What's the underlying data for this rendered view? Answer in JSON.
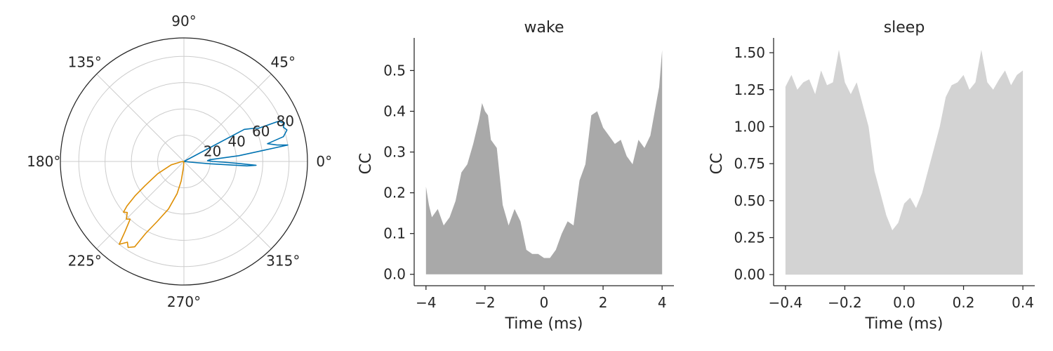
{
  "chart_data": [
    {
      "type": "polar-line",
      "angle_tick_labels": [
        "0°",
        "45°",
        "90°",
        "135°",
        "180°",
        "225°",
        "270°",
        "315°"
      ],
      "radial_tick_values": [
        20,
        40,
        60,
        80
      ],
      "radial_tick_labels": [
        "20",
        "40",
        "60",
        "80"
      ],
      "r_max": 94,
      "grid": true,
      "series": [
        {
          "color": "#0173b2",
          "points": [
            [
              0,
              0
            ],
            [
              -6,
              5
            ],
            [
              -5,
              20
            ],
            [
              -4,
              48
            ],
            [
              -3,
              55
            ],
            [
              -2,
              40
            ],
            [
              -1,
              30
            ],
            [
              0,
              22
            ],
            [
              2,
              18
            ],
            [
              4,
              20
            ],
            [
              6,
              42
            ],
            [
              8,
              62
            ],
            [
              9,
              80
            ],
            [
              10,
              72
            ],
            [
              12,
              65
            ],
            [
              14,
              78
            ],
            [
              17,
              82
            ],
            [
              19,
              80
            ],
            [
              21,
              82
            ],
            [
              23,
              78
            ],
            [
              24,
              62
            ],
            [
              25,
              60
            ],
            [
              28,
              52
            ],
            [
              0,
              0
            ]
          ]
        },
        {
          "color": "#de8f05",
          "points": [
            [
              0,
              0
            ],
            [
              186,
              2
            ],
            [
              195,
              10
            ],
            [
              205,
              22
            ],
            [
              212,
              35
            ],
            [
              215,
              45
            ],
            [
              218,
              55
            ],
            [
              220,
              60
            ],
            [
              222,
              58
            ],
            [
              225,
              62
            ],
            [
              227,
              60
            ],
            [
              230,
              70
            ],
            [
              232,
              80
            ],
            [
              235,
              75
            ],
            [
              237,
              78
            ],
            [
              240,
              75
            ],
            [
              242,
              62
            ],
            [
              246,
              50
            ],
            [
              252,
              38
            ],
            [
              258,
              25
            ],
            [
              262,
              15
            ],
            [
              265,
              5
            ],
            [
              0,
              0
            ]
          ]
        }
      ]
    },
    {
      "type": "area",
      "title": "wake",
      "xlabel": "Time (ms)",
      "ylabel": "CC",
      "xlim": [
        -4.4,
        4.4
      ],
      "ylim": [
        -0.028,
        0.58
      ],
      "xticks": [
        -4,
        -2,
        0,
        2,
        4
      ],
      "xtick_labels": [
        "−4",
        "−2",
        "0",
        "2",
        "4"
      ],
      "yticks": [
        0,
        0.1,
        0.2,
        0.3,
        0.4,
        0.5
      ],
      "ytick_labels": [
        "0.0",
        "0.1",
        "0.2",
        "0.3",
        "0.4",
        "0.5"
      ],
      "color": "#a9a9a9",
      "x": [
        -4.0,
        -3.9,
        -3.8,
        -3.6,
        -3.4,
        -3.2,
        -3.0,
        -2.8,
        -2.6,
        -2.4,
        -2.2,
        -2.1,
        -2.0,
        -1.9,
        -1.8,
        -1.6,
        -1.4,
        -1.2,
        -1.0,
        -0.8,
        -0.6,
        -0.4,
        -0.2,
        0.0,
        0.2,
        0.4,
        0.6,
        0.8,
        1.0,
        1.2,
        1.4,
        1.6,
        1.8,
        2.0,
        2.2,
        2.4,
        2.6,
        2.8,
        3.0,
        3.2,
        3.4,
        3.6,
        3.8,
        3.9,
        4.0
      ],
      "y": [
        0.215,
        0.17,
        0.14,
        0.16,
        0.12,
        0.14,
        0.18,
        0.25,
        0.27,
        0.32,
        0.38,
        0.42,
        0.4,
        0.39,
        0.33,
        0.31,
        0.17,
        0.12,
        0.16,
        0.13,
        0.06,
        0.05,
        0.05,
        0.04,
        0.04,
        0.06,
        0.1,
        0.13,
        0.12,
        0.23,
        0.27,
        0.39,
        0.4,
        0.36,
        0.34,
        0.32,
        0.33,
        0.29,
        0.27,
        0.33,
        0.31,
        0.34,
        0.42,
        0.46,
        0.55
      ]
    },
    {
      "type": "area",
      "title": "sleep",
      "xlabel": "Time (ms)",
      "ylabel": "CC",
      "xlim": [
        -0.44,
        0.44
      ],
      "ylim": [
        -0.075,
        1.6
      ],
      "xticks": [
        -0.4,
        -0.2,
        0.0,
        0.2,
        0.4
      ],
      "xtick_labels": [
        "−0.4",
        "−0.2",
        "0.0",
        "0.2",
        "0.4"
      ],
      "yticks": [
        0,
        0.25,
        0.5,
        0.75,
        1.0,
        1.25,
        1.5
      ],
      "ytick_labels": [
        "0.00",
        "0.25",
        "0.50",
        "0.75",
        "1.00",
        "1.25",
        "1.50"
      ],
      "color": "#d3d3d3",
      "x": [
        -0.4,
        -0.38,
        -0.36,
        -0.34,
        -0.32,
        -0.3,
        -0.28,
        -0.26,
        -0.24,
        -0.22,
        -0.2,
        -0.18,
        -0.16,
        -0.14,
        -0.12,
        -0.1,
        -0.08,
        -0.06,
        -0.04,
        -0.02,
        0.0,
        0.02,
        0.04,
        0.06,
        0.08,
        0.1,
        0.12,
        0.14,
        0.16,
        0.18,
        0.2,
        0.22,
        0.24,
        0.26,
        0.28,
        0.3,
        0.32,
        0.34,
        0.36,
        0.38,
        0.4
      ],
      "y": [
        1.27,
        1.35,
        1.25,
        1.3,
        1.32,
        1.22,
        1.38,
        1.28,
        1.3,
        1.52,
        1.3,
        1.22,
        1.3,
        1.15,
        1.0,
        0.7,
        0.55,
        0.4,
        0.3,
        0.35,
        0.48,
        0.52,
        0.45,
        0.55,
        0.7,
        0.85,
        1.0,
        1.2,
        1.28,
        1.3,
        1.35,
        1.25,
        1.3,
        1.52,
        1.3,
        1.25,
        1.32,
        1.38,
        1.28,
        1.35,
        1.38
      ]
    }
  ]
}
